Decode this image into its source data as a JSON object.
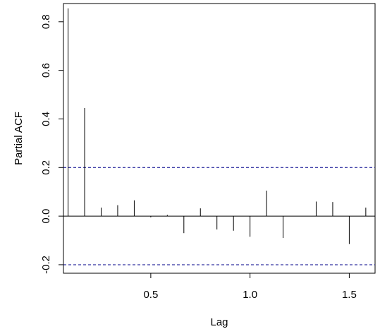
{
  "chart_data": {
    "type": "bar",
    "title": "",
    "xlabel": "Lag",
    "ylabel": "Partial ACF",
    "xlim": [
      0.06,
      1.63
    ],
    "ylim": [
      -0.235,
      0.875
    ],
    "x_ticks": [
      0.5,
      1.0,
      1.5
    ],
    "x_tick_labels": [
      "0.5",
      "1.0",
      "1.5"
    ],
    "y_ticks": [
      -0.2,
      0.0,
      0.2,
      0.4,
      0.6,
      0.8
    ],
    "y_tick_labels": [
      "-0.2",
      "0.0",
      "0.2",
      "0.4",
      "0.6",
      "0.8"
    ],
    "grid": false,
    "confidence_bounds": {
      "upper": 0.2,
      "lower": -0.2,
      "color": "#00008b"
    },
    "lags": [
      0.0833,
      0.1667,
      0.25,
      0.3333,
      0.4167,
      0.5,
      0.5833,
      0.6667,
      0.75,
      0.8333,
      0.9167,
      1.0,
      1.0833,
      1.1667,
      1.25,
      1.3333,
      1.4167,
      1.5,
      1.5833
    ],
    "values": [
      0.855,
      0.445,
      0.035,
      0.045,
      0.065,
      -0.005,
      0.005,
      -0.07,
      0.032,
      -0.055,
      -0.06,
      -0.085,
      0.105,
      -0.09,
      0.0,
      0.06,
      0.058,
      -0.115,
      0.035
    ]
  }
}
